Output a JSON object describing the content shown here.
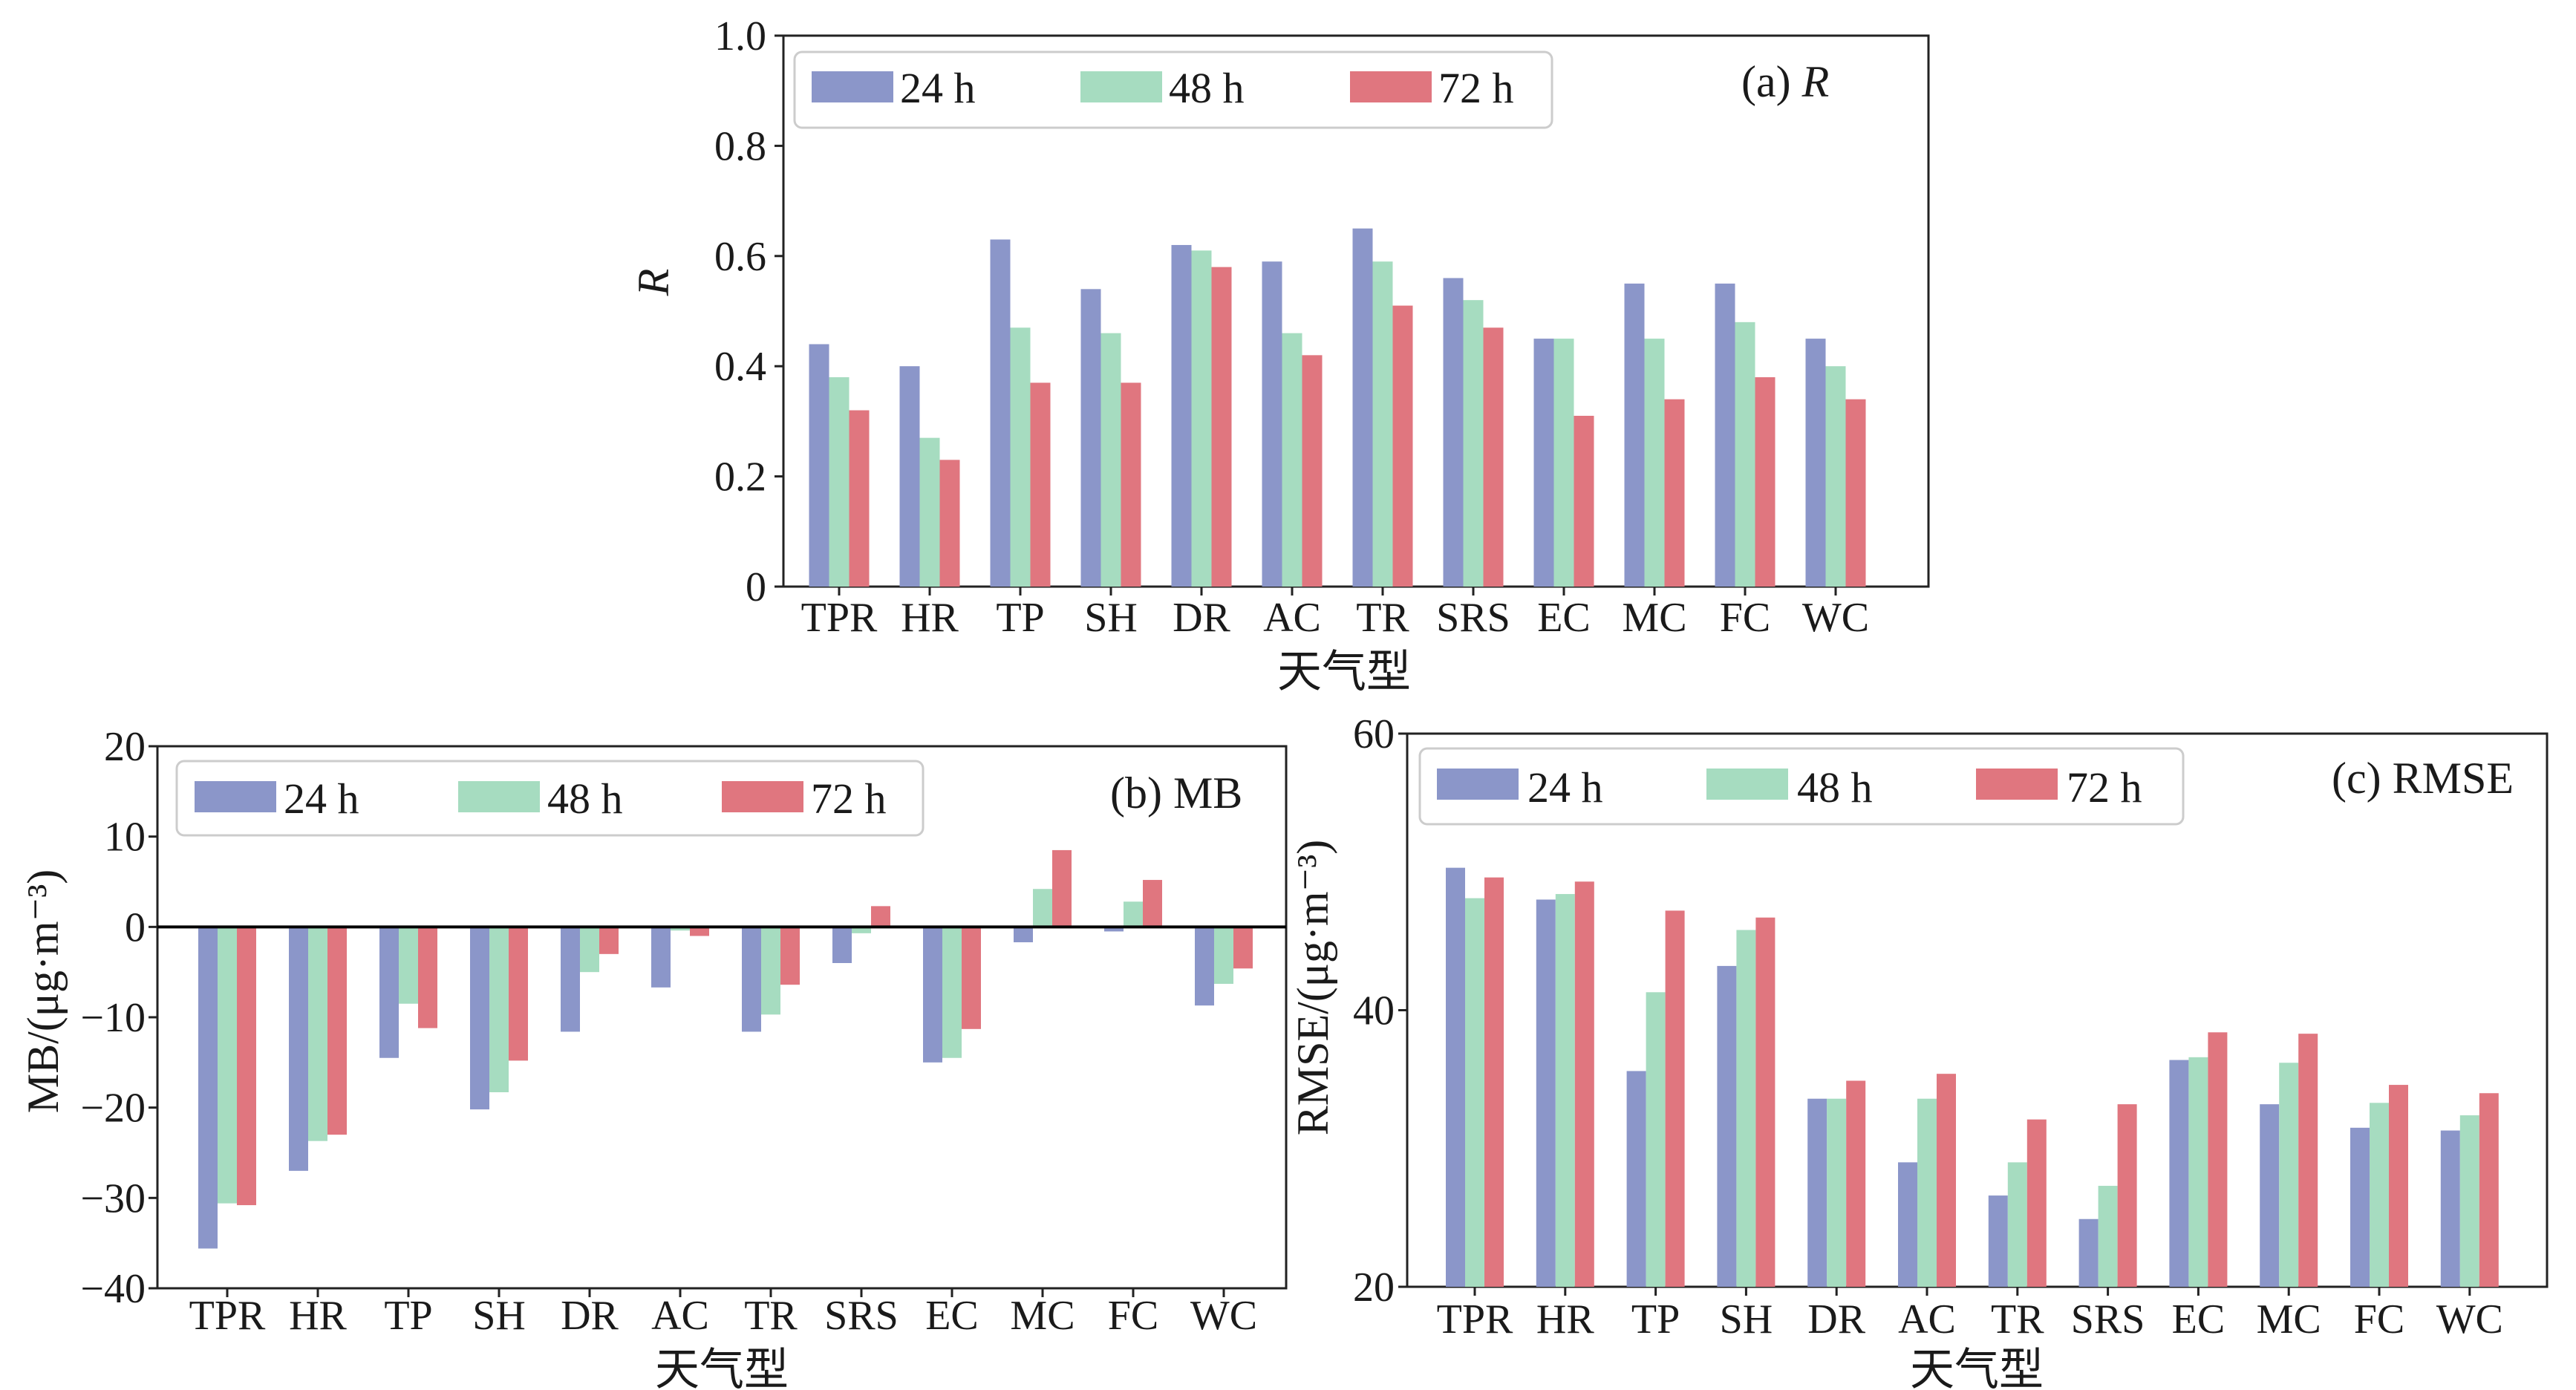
{
  "colors": {
    "24h": "#8b96c9",
    "48h": "#a6dcc0",
    "72h": "#e0767f",
    "axis": "#222222",
    "zero_line": "#000000"
  },
  "chart_data": [
    {
      "type": "bar",
      "id": "panel-a",
      "title": "(a) R",
      "title_prefix": "(a) ",
      "title_var": "R",
      "xlabel": "天气型",
      "ylabel": "R",
      "ylim": [
        0,
        1.0
      ],
      "yticks": [
        0,
        0.2,
        0.4,
        0.6,
        0.8,
        1.0
      ],
      "ytick_labels": [
        "0",
        "0.2",
        "0.4",
        "0.6",
        "0.8",
        "1.0"
      ],
      "legend_position": "top-left",
      "categories": [
        "TPR",
        "HR",
        "TP",
        "SH",
        "DR",
        "AC",
        "TR",
        "SRS",
        "EC",
        "MC",
        "FC",
        "WC"
      ],
      "series": [
        {
          "name": "24 h",
          "values": [
            0.44,
            0.4,
            0.63,
            0.54,
            0.62,
            0.59,
            0.65,
            0.56,
            0.45,
            0.55,
            0.55,
            0.45
          ]
        },
        {
          "name": "48 h",
          "values": [
            0.38,
            0.27,
            0.47,
            0.46,
            0.61,
            0.46,
            0.59,
            0.52,
            0.45,
            0.45,
            0.48,
            0.4
          ]
        },
        {
          "name": "72 h",
          "values": [
            0.32,
            0.23,
            0.37,
            0.37,
            0.58,
            0.42,
            0.51,
            0.47,
            0.31,
            0.34,
            0.38,
            0.34
          ]
        }
      ]
    },
    {
      "type": "bar",
      "id": "panel-b",
      "title": "(b) MB",
      "xlabel": "天气型",
      "ylabel": "MB/(μg·m⁻³)",
      "ylim": [
        -40,
        20
      ],
      "yticks": [
        -40,
        -30,
        -20,
        -10,
        0,
        10,
        20
      ],
      "ytick_labels": [
        "−40",
        "−30",
        "−20",
        "−10",
        "0",
        "10",
        "20"
      ],
      "zero_line": true,
      "legend_position": "top-left",
      "categories": [
        "TPR",
        "HR",
        "TP",
        "SH",
        "DR",
        "AC",
        "TR",
        "SRS",
        "EC",
        "MC",
        "FC",
        "WC"
      ],
      "series": [
        {
          "name": "24 h",
          "values": [
            -35.6,
            -27.0,
            -14.5,
            -20.2,
            -11.6,
            -6.7,
            -11.6,
            -4.0,
            -15.0,
            -1.7,
            -0.5,
            -8.7
          ]
        },
        {
          "name": "48 h",
          "values": [
            -30.6,
            -23.7,
            -8.5,
            -18.3,
            -5.0,
            -0.4,
            -9.7,
            -0.7,
            -14.5,
            4.2,
            2.8,
            -6.3
          ]
        },
        {
          "name": "72 h",
          "values": [
            -30.8,
            -23.0,
            -11.2,
            -14.8,
            -3.0,
            -1.0,
            -6.4,
            2.3,
            -11.3,
            8.5,
            5.2,
            -4.6
          ]
        }
      ]
    },
    {
      "type": "bar",
      "id": "panel-c",
      "title": "(c) RMSE",
      "xlabel": "天气型",
      "ylabel": "RMSE/(μg·m⁻³)",
      "ylim": [
        20,
        60
      ],
      "yticks": [
        20,
        40,
        60
      ],
      "ytick_labels": [
        "20",
        "40",
        "60"
      ],
      "legend_position": "top-left",
      "categories": [
        "TPR",
        "HR",
        "TP",
        "SH",
        "DR",
        "AC",
        "TR",
        "SRS",
        "EC",
        "MC",
        "FC",
        "WC"
      ],
      "series": [
        {
          "name": "24 h",
          "values": [
            50.3,
            48.0,
            35.6,
            43.2,
            33.6,
            29.0,
            26.6,
            24.9,
            36.4,
            33.2,
            31.5,
            31.3
          ]
        },
        {
          "name": "48 h",
          "values": [
            48.1,
            48.4,
            41.3,
            45.8,
            33.6,
            33.6,
            29.0,
            27.3,
            36.6,
            36.2,
            33.3,
            32.4
          ]
        },
        {
          "name": "72 h",
          "values": [
            49.6,
            49.3,
            47.2,
            46.7,
            34.9,
            35.4,
            32.1,
            33.2,
            38.4,
            38.3,
            34.6,
            34.0
          ]
        }
      ]
    }
  ]
}
